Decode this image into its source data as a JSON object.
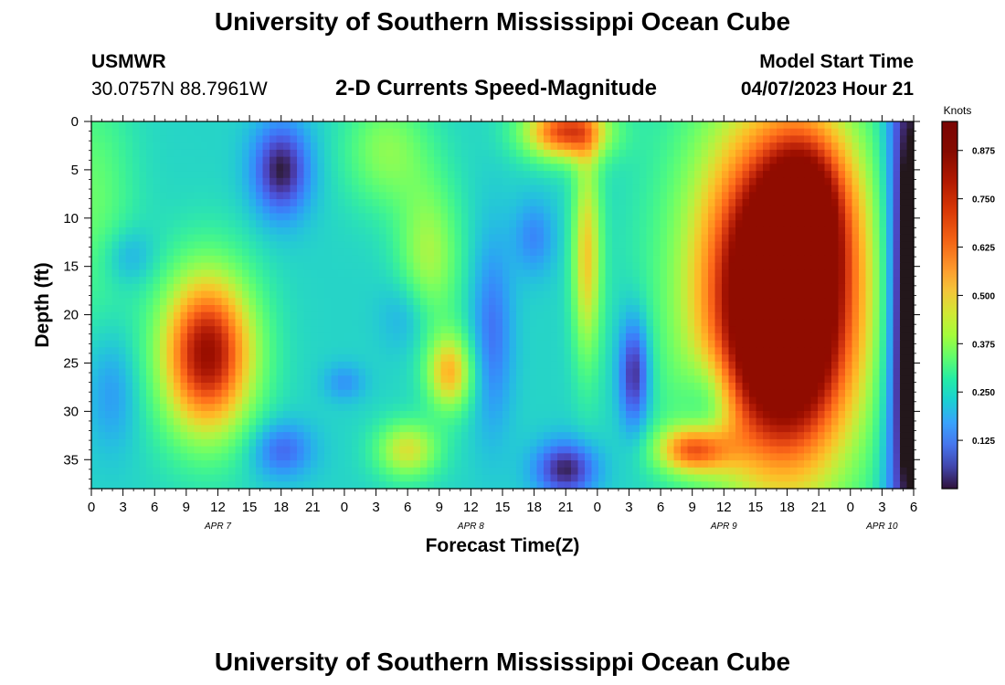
{
  "page": {
    "title": "University of Southern Mississippi Ocean Cube",
    "footer_title": "University of Southern Mississippi Ocean Cube",
    "station_id": "USMWR",
    "station_coords": "30.0757N  88.7961W",
    "plot_subtitle": "2-D Currents Speed-Magnitude",
    "model_start_label": "Model Start Time",
    "model_start_value": "04/07/2023 Hour 21"
  },
  "chart_data": {
    "type": "heatmap",
    "title": "2-D Currents Speed-Magnitude",
    "xlabel": "Forecast Time(Z)",
    "ylabel": "Depth (ft)",
    "x_tick_labels": [
      "0",
      "3",
      "6",
      "9",
      "12",
      "15",
      "18",
      "21",
      "0",
      "3",
      "6",
      "9",
      "12",
      "15",
      "18",
      "21",
      "0",
      "3",
      "6",
      "9",
      "12",
      "15",
      "18",
      "21",
      "0",
      "3",
      "6"
    ],
    "x_range_hours": [
      0,
      78
    ],
    "date_labels": [
      {
        "text": "APR 7",
        "hour": 12
      },
      {
        "text": "APR 8",
        "hour": 36
      },
      {
        "text": "APR 9",
        "hour": 60
      },
      {
        "text": "APR 10",
        "hour": 75
      }
    ],
    "y_ticks": [
      0,
      5,
      10,
      15,
      20,
      25,
      30,
      35
    ],
    "y_range_ft": [
      0,
      38
    ],
    "y_inverted": true,
    "colorbar": {
      "label": "Knots",
      "ticks": [
        "0.125",
        "0.250",
        "0.375",
        "0.500",
        "0.625",
        "0.750",
        "0.875"
      ],
      "range": [
        0.0,
        0.95
      ],
      "colormap": "turbo"
    },
    "features": [
      {
        "desc": "strong core",
        "hour": 11,
        "depth": 24,
        "speed": 0.9
      },
      {
        "desc": "weak core",
        "hour": 18,
        "depth": 5,
        "speed": 0.02
      },
      {
        "desc": "weak core",
        "hour": 18,
        "depth": 34,
        "speed": 0.1
      },
      {
        "desc": "weak pocket",
        "hour": 2,
        "depth": 27,
        "speed": 0.18
      },
      {
        "desc": "weak pocket",
        "hour": 3.5,
        "depth": 14,
        "speed": 0.22
      },
      {
        "desc": "weak pocket",
        "hour": 3,
        "depth": 32,
        "speed": 0.15
      },
      {
        "desc": "moderate patch",
        "hour": 34,
        "depth": 26,
        "speed": 0.68
      },
      {
        "desc": "moderate patch",
        "hour": 30,
        "depth": 34,
        "speed": 0.6
      },
      {
        "desc": "weak core",
        "hour": 45,
        "depth": 36,
        "speed": 0.02
      },
      {
        "desc": "strong surface core",
        "hour": 45,
        "depth": 1,
        "speed": 0.8
      },
      {
        "desc": "weak pocket",
        "hour": 51.5,
        "depth": 26,
        "speed": 0.02
      },
      {
        "desc": "strong band",
        "hour": 66,
        "depth": 18,
        "speed": 0.85
      },
      {
        "desc": "peak band",
        "hour": 68,
        "depth": 8,
        "speed": 0.95
      },
      {
        "desc": "strong patch",
        "hour": 57,
        "depth": 34,
        "speed": 0.72
      }
    ]
  }
}
